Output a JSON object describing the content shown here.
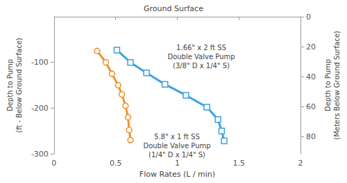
{
  "chart_data": {
    "type": "line",
    "title": "Ground Surface",
    "x_label": "Flow Rates (L / min)",
    "y_label": "Depth to Pump (ft - Below Ground Surface)",
    "y2_label": "Depth to Pump (Meters Below Ground Surface)",
    "xlim": [
      0,
      2
    ],
    "xticks": [
      0,
      0.5,
      1,
      1.5,
      2
    ],
    "ylim": [
      -300,
      0
    ],
    "yticks": [
      -300,
      -200,
      -100
    ],
    "y2lim": [
      91.44,
      0
    ],
    "y2ticks": [
      0,
      20,
      40,
      60,
      80
    ],
    "grid": false,
    "series": [
      {
        "color": "#3aa3dc",
        "marker": "square",
        "x": [
          0.51,
          0.62,
          0.75,
          0.9,
          1.07,
          1.24,
          1.33,
          1.36,
          1.38
        ],
        "values": [
          -73,
          -100,
          -123,
          -148,
          -172,
          -198,
          -225,
          -250,
          -272
        ],
        "annotation": [
          "1.66\" x 2 ft SS",
          "Double Valve Pump",
          "(3/8\" D x 1/4\" S)"
        ]
      },
      {
        "color": "#f0922b",
        "marker": "circle",
        "x": [
          0.35,
          0.42,
          0.47,
          0.52,
          0.55,
          0.58,
          0.6,
          0.61,
          0.62
        ],
        "values": [
          -75,
          -100,
          -125,
          -150,
          -170,
          -195,
          -220,
          -248,
          -270
        ],
        "annotation": [
          "5.8\" x 1 ft SS",
          "Double Valve Pump",
          "(1/4\" D x 1/4\" S)"
        ]
      }
    ]
  }
}
